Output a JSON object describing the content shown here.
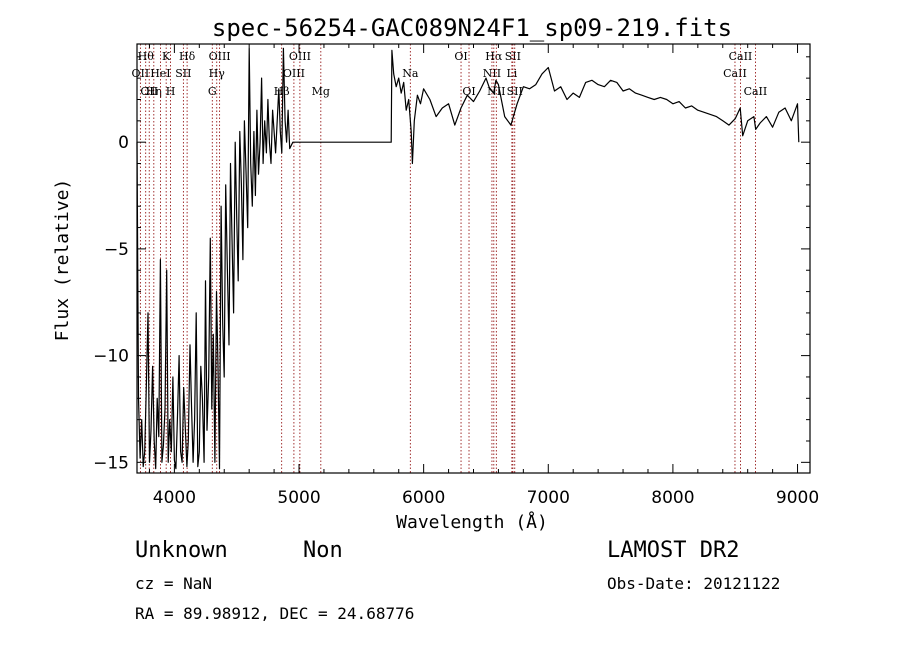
{
  "chart_data": {
    "type": "line",
    "title": "spec-56254-GAC089N24F1_sp09-219.fits",
    "xlabel": "Wavelength (Å)",
    "ylabel": "Flux (relative)",
    "xlim": [
      3700,
      9100
    ],
    "ylim": [
      -15.5,
      4.6
    ],
    "xticks": [
      {
        "value": 4000,
        "label": "4000"
      },
      {
        "value": 5000,
        "label": "5000"
      },
      {
        "value": 6000,
        "label": "6000"
      },
      {
        "value": 7000,
        "label": "7000"
      },
      {
        "value": 8000,
        "label": "8000"
      },
      {
        "value": 9000,
        "label": "9000"
      }
    ],
    "yticks": [
      {
        "value": 0,
        "label": "0"
      },
      {
        "value": -5,
        "label": "−5"
      },
      {
        "value": -10,
        "label": "−10"
      },
      {
        "value": -15,
        "label": "−15"
      }
    ],
    "grid": false,
    "line_color": "#000000",
    "marker_color": "#8b0000",
    "series": [
      {
        "x": [
          3700,
          3712,
          3725,
          3738,
          3750,
          3762,
          3775,
          3788,
          3800,
          3812,
          3825,
          3838,
          3850,
          3862,
          3875,
          3888,
          3900,
          3912,
          3925,
          3938,
          3950,
          3962,
          3975,
          3988,
          4000,
          4012,
          4025,
          4038,
          4050,
          4062,
          4075,
          4088,
          4100,
          4112,
          4125,
          4138,
          4150,
          4162,
          4175,
          4188,
          4200,
          4212,
          4225,
          4238,
          4250,
          4262,
          4275,
          4288,
          4300,
          4312,
          4325,
          4338,
          4350,
          4362,
          4375,
          4388,
          4400,
          4412,
          4425,
          4438,
          4450,
          4462,
          4475,
          4488,
          4500,
          4512,
          4525,
          4538,
          4550,
          4562,
          4575,
          4588,
          4600,
          4612,
          4625,
          4638,
          4650,
          4662,
          4675,
          4688,
          4700,
          4712,
          4725,
          4738,
          4750,
          4762,
          4775,
          4788,
          4800,
          4812,
          4825,
          4838,
          4850,
          4862,
          4875,
          4888,
          4900,
          4912,
          4925,
          4950,
          5000,
          5100,
          5200,
          5300,
          5400,
          5500,
          5600,
          5700,
          5740,
          5745,
          5760,
          5780,
          5800,
          5820,
          5840,
          5860,
          5880,
          5900,
          5910,
          5925,
          5950,
          5975,
          6000,
          6050,
          6100,
          6150,
          6200,
          6250,
          6300,
          6350,
          6400,
          6450,
          6500,
          6530,
          6562,
          6580,
          6600,
          6650,
          6700,
          6750,
          6800,
          6850,
          6900,
          6950,
          7000,
          7050,
          7100,
          7150,
          7200,
          7250,
          7300,
          7350,
          7400,
          7450,
          7500,
          7550,
          7600,
          7650,
          7700,
          7750,
          7800,
          7850,
          7900,
          7950,
          8000,
          8050,
          8100,
          8150,
          8200,
          8250,
          8300,
          8350,
          8400,
          8450,
          8500,
          8540,
          8560,
          8600,
          8650,
          8664,
          8700,
          8750,
          8800,
          8850,
          8900,
          8950,
          9000,
          9010
        ],
        "y": [
          0.0,
          -12.0,
          -14.8,
          -13.0,
          -15.2,
          -14.5,
          -11.5,
          -8.0,
          -15.0,
          -13.5,
          -10.5,
          -14.0,
          -15.3,
          -12.0,
          -13.8,
          -5.5,
          -15.0,
          -14.2,
          -12.5,
          -6.0,
          -15.0,
          -13.0,
          -14.5,
          -11.0,
          -14.9,
          -15.3,
          -12.8,
          -10.0,
          -14.5,
          -15.0,
          -11.5,
          -13.5,
          -15.2,
          -14.0,
          -9.5,
          -12.5,
          -15.0,
          -13.0,
          -8.0,
          -15.2,
          -14.5,
          -10.5,
          -12.0,
          -15.0,
          -6.5,
          -13.5,
          -11.0,
          -4.5,
          -12.5,
          -9.0,
          -15.0,
          -7.0,
          -10.5,
          -15.3,
          -3.0,
          -8.5,
          -11.0,
          -2.0,
          -6.0,
          -9.5,
          -1.0,
          -4.5,
          -8.0,
          0.0,
          -3.5,
          -6.5,
          0.5,
          -2.0,
          -5.5,
          1.0,
          -1.5,
          -4.0,
          4.4,
          -1.0,
          -3.0,
          0.5,
          -2.5,
          1.5,
          -1.5,
          0.0,
          3.0,
          -1.0,
          1.0,
          -0.5,
          2.0,
          0.0,
          -1.0,
          1.5,
          0.5,
          -0.5,
          1.0,
          2.5,
          0.5,
          -0.5,
          4.4,
          1.0,
          0.0,
          1.5,
          -0.3,
          0.0,
          0.0,
          0.0,
          0.0,
          0.0,
          0.0,
          0.0,
          0.0,
          0.0,
          0.0,
          4.3,
          3.2,
          2.6,
          3.0,
          2.3,
          2.8,
          1.5,
          2.0,
          0.5,
          -1.0,
          1.0,
          2.2,
          1.8,
          2.5,
          2.0,
          1.2,
          1.6,
          1.8,
          0.8,
          1.6,
          2.2,
          1.9,
          2.4,
          3.0,
          2.5,
          2.3,
          2.9,
          2.7,
          1.2,
          0.8,
          1.8,
          2.6,
          2.5,
          2.7,
          3.2,
          3.5,
          2.4,
          2.6,
          2.0,
          2.3,
          2.1,
          2.8,
          2.9,
          2.7,
          2.6,
          2.9,
          2.8,
          2.4,
          2.5,
          2.3,
          2.2,
          2.1,
          2.0,
          2.1,
          2.0,
          1.8,
          1.9,
          1.6,
          1.7,
          1.5,
          1.4,
          1.3,
          1.2,
          1.0,
          0.8,
          1.1,
          1.6,
          0.3,
          1.0,
          1.2,
          0.6,
          0.9,
          1.2,
          0.7,
          1.4,
          1.6,
          1.0,
          1.8,
          0.0
        ]
      }
    ],
    "line_markers": [
      {
        "x": 3727,
        "label": "OII",
        "row": 1
      },
      {
        "x": 3770,
        "label": "Hθ",
        "row": 0
      },
      {
        "x": 3798,
        "label": "OII",
        "row": 2
      },
      {
        "x": 3835,
        "label": "Hη",
        "row": 2
      },
      {
        "x": 3888,
        "label": "HeI",
        "row": 1
      },
      {
        "x": 3934,
        "label": "K",
        "row": 0
      },
      {
        "x": 3969,
        "label": "H",
        "row": 2
      },
      {
        "x": 4072,
        "label": "SII",
        "row": 1
      },
      {
        "x": 4102,
        "label": "Hδ",
        "row": 0
      },
      {
        "x": 4304,
        "label": "G",
        "row": 2
      },
      {
        "x": 4340,
        "label": "Hγ",
        "row": 1
      },
      {
        "x": 4363,
        "label": "OIII",
        "row": 0
      },
      {
        "x": 4861,
        "label": "Hβ",
        "row": 2
      },
      {
        "x": 4959,
        "label": "OIII",
        "row": 1
      },
      {
        "x": 5007,
        "label": "OIII",
        "row": 0
      },
      {
        "x": 5175,
        "label": "Mg",
        "row": 2
      },
      {
        "x": 5893,
        "label": "Na",
        "row": 1
      },
      {
        "x": 6300,
        "label": "OI",
        "row": 0
      },
      {
        "x": 6364,
        "label": "OI",
        "row": 2
      },
      {
        "x": 6548,
        "label": "NII",
        "row": 1
      },
      {
        "x": 6563,
        "label": "Hα",
        "row": 0
      },
      {
        "x": 6583,
        "label": "NII",
        "row": 2
      },
      {
        "x": 6708,
        "label": "Li",
        "row": 1
      },
      {
        "x": 6716,
        "label": "SII",
        "row": 0
      },
      {
        "x": 6731,
        "label": "SII",
        "row": 2
      },
      {
        "x": 8498,
        "label": "CaII",
        "row": 1
      },
      {
        "x": 8542,
        "label": "CaII",
        "row": 0
      },
      {
        "x": 8662,
        "label": "CaII",
        "row": 2
      }
    ]
  },
  "info": {
    "object_class": "Unknown",
    "subclass": "Non",
    "survey": "LAMOST DR2",
    "cz": "cz = NaN",
    "obs_date": "Obs-Date: 20121122",
    "coords": "RA =  89.98912, DEC =  24.68776"
  }
}
